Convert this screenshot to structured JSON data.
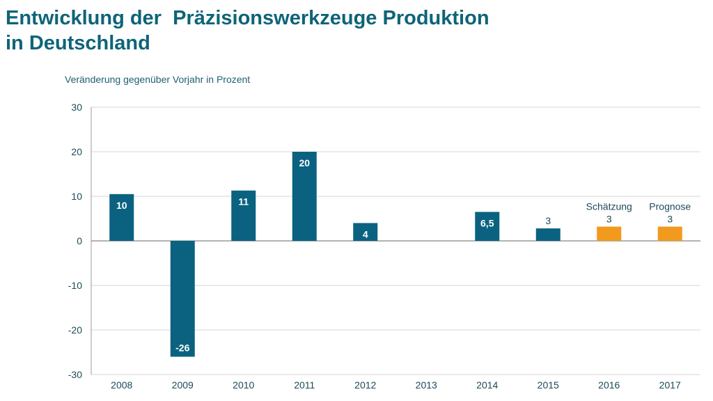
{
  "title": {
    "line1": "Entwicklung der  Präzisionswerkzeuge Produktion",
    "line2": "in Deutschland"
  },
  "chart_data": {
    "type": "bar",
    "title": "Entwicklung der  Präzisionswerkzeuge Produktion in Deutschland",
    "ylabel": "Veränderung gegenüber Vorjahr in Prozent",
    "xlabel": "",
    "ylim": [
      -30,
      30
    ],
    "yticks": [
      30,
      20,
      10,
      0,
      -10,
      -20,
      -30
    ],
    "grid": true,
    "categories": [
      "2008",
      "2009",
      "2010",
      "2011",
      "2012",
      "2013",
      "2014",
      "2015",
      "2016",
      "2017"
    ],
    "values": [
      10.5,
      -26,
      11.3,
      20,
      4,
      null,
      6.5,
      2.8,
      3.2,
      3.2
    ],
    "value_labels": [
      "10",
      "-26",
      "11",
      "20",
      "4",
      "",
      "6,5",
      "3",
      "3",
      "3"
    ],
    "annotations": [
      "",
      "",
      "",
      "",
      "",
      "",
      "",
      "",
      "Schätzung",
      "Prognose"
    ],
    "colors": {
      "actual": "#0a6280",
      "forecast": "#f29a1e",
      "grid": "#d4d4d4",
      "axis": "#9a9a9a"
    },
    "bar_kind": [
      "actual",
      "actual",
      "actual",
      "actual",
      "actual",
      "actual",
      "actual",
      "actual",
      "forecast",
      "forecast"
    ]
  }
}
